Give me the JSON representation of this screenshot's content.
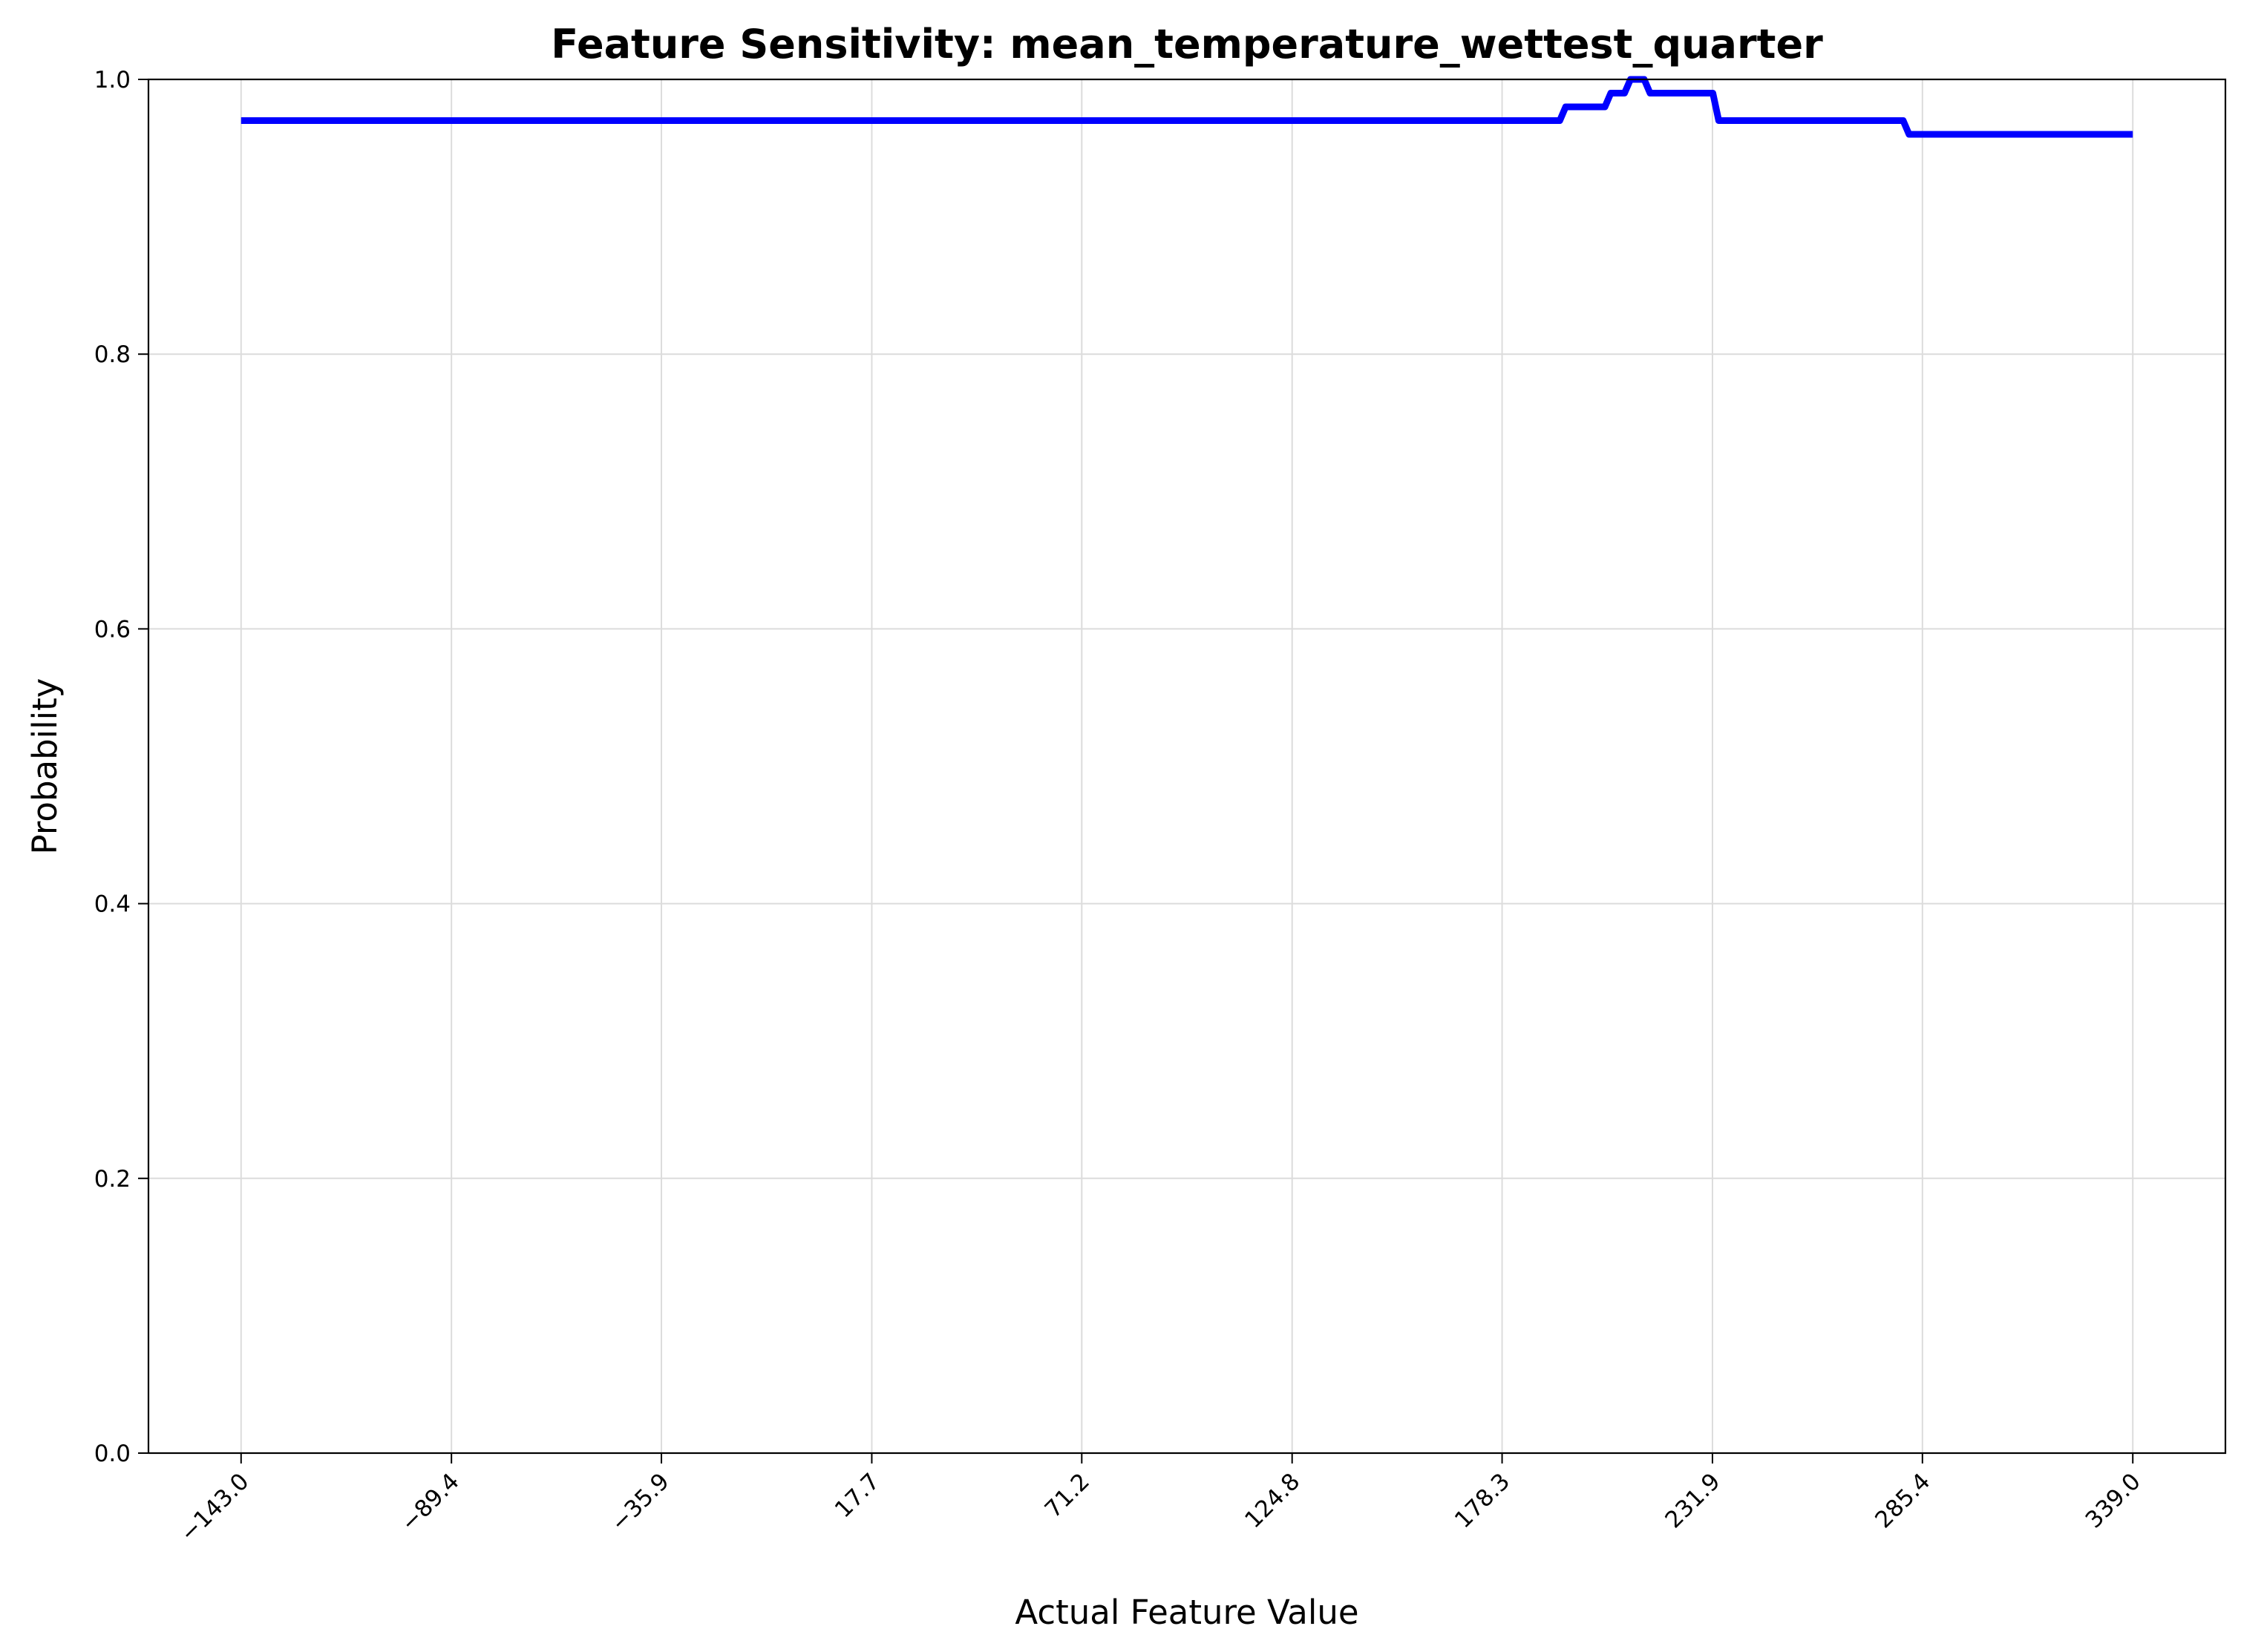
{
  "chart_data": {
    "type": "line",
    "title": "Feature Sensitivity: mean_temperature_wettest_quarter",
    "xlabel": "Actual Feature Value",
    "ylabel": "Probability",
    "xlim": [
      -166.6,
      362.6
    ],
    "ylim": [
      0.0,
      1.0
    ],
    "grid": true,
    "x_ticks": [
      -143.0,
      -89.4,
      -35.9,
      17.7,
      71.2,
      124.8,
      178.3,
      231.9,
      285.4,
      339.0
    ],
    "x_tick_labels": [
      "−143.0",
      "−89.4",
      "−35.9",
      "17.7",
      "71.2",
      "124.8",
      "178.3",
      "231.9",
      "285.4",
      "339.0"
    ],
    "y_ticks": [
      0.0,
      0.2,
      0.4,
      0.6,
      0.8,
      1.0
    ],
    "y_tick_labels": [
      "0.0",
      "0.2",
      "0.4",
      "0.6",
      "0.8",
      "1.0"
    ],
    "series": [
      {
        "name": "probability",
        "color": "#0000ff",
        "x": [
          -143.0,
          193.0,
          194.5,
          204.5,
          206.0,
          209.5,
          211.0,
          214.5,
          216.0,
          219.0,
          221.0,
          232.0,
          233.5,
          280.5,
          282.0,
          339.0
        ],
        "y": [
          0.97,
          0.97,
          0.98,
          0.98,
          0.99,
          0.99,
          1.0,
          1.0,
          0.99,
          0.99,
          0.99,
          0.99,
          0.97,
          0.97,
          0.96,
          0.96
        ]
      }
    ]
  }
}
